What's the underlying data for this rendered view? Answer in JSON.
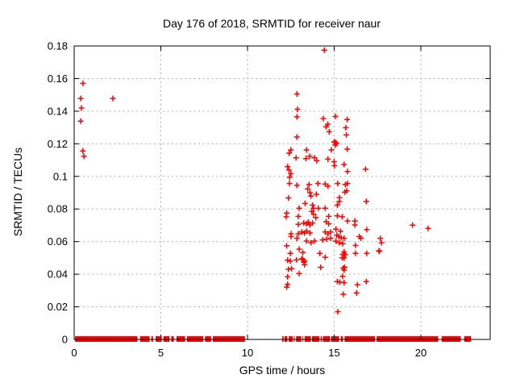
{
  "chart_data": {
    "type": "scatter",
    "title": "Day 176 of 2018, SRMTID for receiver naur",
    "xlabel": "GPS time / hours",
    "ylabel": "SRMTID / TECUs",
    "xlim": [
      0,
      24
    ],
    "ylim": [
      0,
      0.18
    ],
    "xticks": [
      0,
      5,
      10,
      15,
      20
    ],
    "xtick_labels": [
      "0",
      "5",
      "10",
      "15",
      "20"
    ],
    "yticks": [
      0,
      0.02,
      0.04,
      0.06,
      0.08,
      0.1,
      0.12,
      0.14,
      0.16,
      0.18
    ],
    "ytick_labels": [
      "0",
      "0.02",
      "0.04",
      "0.06",
      "0.08",
      "0.1",
      "0.12",
      "0.14",
      "0.16",
      "0.18"
    ],
    "grid": true,
    "legend": "none",
    "marker": "plus",
    "marker_color": "#ff0000",
    "grid_color": "#b0b0b0",
    "border_color": "#000000",
    "baseline_y": 0,
    "baseline_segments": [
      [
        0.05,
        3.65
      ],
      [
        3.8,
        4.35
      ],
      [
        4.45,
        4.55
      ],
      [
        4.7,
        5.05
      ],
      [
        5.15,
        5.5
      ],
      [
        5.6,
        5.75
      ],
      [
        5.9,
        6.4
      ],
      [
        6.5,
        7.45
      ],
      [
        7.55,
        7.9
      ],
      [
        8.0,
        9.85
      ],
      [
        12.0,
        12.08
      ],
      [
        12.13,
        12.3
      ],
      [
        12.38,
        12.6
      ],
      [
        12.67,
        12.72
      ],
      [
        12.8,
        13.1
      ],
      [
        13.17,
        13.22
      ],
      [
        13.3,
        13.65
      ],
      [
        13.72,
        14.15
      ],
      [
        14.22,
        14.28
      ],
      [
        14.35,
        14.75
      ],
      [
        14.82,
        15.28
      ],
      [
        15.38,
        15.5
      ],
      [
        15.6,
        17.35
      ],
      [
        17.45,
        21.0
      ],
      [
        21.2,
        22.3
      ],
      [
        22.5,
        22.9
      ]
    ],
    "points": [
      [
        0.51,
        0.157
      ],
      [
        0.37,
        0.1478
      ],
      [
        0.42,
        0.1419
      ],
      [
        0.37,
        0.1339
      ],
      [
        0.5,
        0.1156
      ],
      [
        0.56,
        0.1123
      ],
      [
        2.23,
        0.1478
      ],
      [
        14.43,
        0.1774
      ],
      [
        12.85,
        0.1505
      ],
      [
        12.88,
        0.1411
      ],
      [
        12.85,
        0.1365
      ],
      [
        14.37,
        0.1355
      ],
      [
        15.07,
        0.1368
      ],
      [
        14.63,
        0.132
      ],
      [
        14.53,
        0.1304
      ],
      [
        15.75,
        0.1349
      ],
      [
        14.71,
        0.1274
      ],
      [
        15.67,
        0.1299
      ],
      [
        15.7,
        0.1254
      ],
      [
        12.85,
        0.1241
      ],
      [
        15.0,
        0.1212
      ],
      [
        15.07,
        0.1208
      ],
      [
        15.13,
        0.1202
      ],
      [
        15.06,
        0.1192
      ],
      [
        12.5,
        0.1162
      ],
      [
        13.4,
        0.1162
      ],
      [
        14.84,
        0.1162
      ],
      [
        15.75,
        0.1167
      ],
      [
        12.4,
        0.1142
      ],
      [
        12.8,
        0.1114
      ],
      [
        13.37,
        0.1109
      ],
      [
        13.58,
        0.1123
      ],
      [
        13.86,
        0.1114
      ],
      [
        14.0,
        0.1096
      ],
      [
        14.64,
        0.1106
      ],
      [
        14.99,
        0.109
      ],
      [
        15.02,
        0.1065
      ],
      [
        15.57,
        0.1073
      ],
      [
        12.31,
        0.106
      ],
      [
        12.39,
        0.1039
      ],
      [
        12.5,
        0.1016
      ],
      [
        12.43,
        0.0994
      ],
      [
        15.77,
        0.103
      ],
      [
        16.81,
        0.1044
      ],
      [
        15.77,
        0.0956
      ],
      [
        15.72,
        0.0912
      ],
      [
        12.42,
        0.0956
      ],
      [
        12.85,
        0.0945
      ],
      [
        13.55,
        0.095
      ],
      [
        14.06,
        0.0956
      ],
      [
        14.48,
        0.0953
      ],
      [
        14.64,
        0.094
      ],
      [
        13.47,
        0.0923
      ],
      [
        13.6,
        0.09
      ],
      [
        13.66,
        0.0879
      ],
      [
        12.36,
        0.0867
      ],
      [
        13.97,
        0.089
      ],
      [
        13.32,
        0.0834
      ],
      [
        12.98,
        0.0805
      ],
      [
        13.75,
        0.0824
      ],
      [
        13.81,
        0.0805
      ],
      [
        13.71,
        0.0785
      ],
      [
        14.09,
        0.0805
      ],
      [
        14.48,
        0.0805
      ],
      [
        12.26,
        0.0775
      ],
      [
        12.23,
        0.0752
      ],
      [
        12.93,
        0.0755
      ],
      [
        13.81,
        0.0768
      ],
      [
        13.94,
        0.0747
      ],
      [
        14.68,
        0.0755
      ],
      [
        12.93,
        0.0706
      ],
      [
        13.24,
        0.0714
      ],
      [
        13.4,
        0.0709
      ],
      [
        13.5,
        0.0719
      ],
      [
        13.6,
        0.0702
      ],
      [
        13.75,
        0.0714
      ],
      [
        14.53,
        0.0722
      ],
      [
        14.68,
        0.0709
      ],
      [
        12.51,
        0.0648
      ],
      [
        12.51,
        0.0631
      ],
      [
        12.93,
        0.0648
      ],
      [
        13.13,
        0.0659
      ],
      [
        13.29,
        0.0653
      ],
      [
        13.4,
        0.0664
      ],
      [
        13.6,
        0.0653
      ],
      [
        14.33,
        0.061
      ],
      [
        14.48,
        0.0659
      ],
      [
        14.64,
        0.0648
      ],
      [
        14.79,
        0.0659
      ],
      [
        12.85,
        0.062
      ],
      [
        13.4,
        0.0603
      ],
      [
        13.66,
        0.0593
      ],
      [
        13.86,
        0.0603
      ],
      [
        14.56,
        0.0615
      ],
      [
        14.79,
        0.062
      ],
      [
        12.26,
        0.0574
      ],
      [
        12.98,
        0.0554
      ],
      [
        13.19,
        0.0533
      ],
      [
        12.47,
        0.0528
      ],
      [
        14.17,
        0.0528
      ],
      [
        14.48,
        0.0504
      ],
      [
        13.13,
        0.0495
      ],
      [
        12.82,
        0.0488
      ],
      [
        15.2,
        0.0956
      ],
      [
        15.64,
        0.095
      ],
      [
        15.61,
        0.0903
      ],
      [
        15.3,
        0.087
      ],
      [
        15.3,
        0.0846
      ],
      [
        15.18,
        0.0824
      ],
      [
        16.85,
        0.0846
      ],
      [
        15.18,
        0.0758
      ],
      [
        15.46,
        0.0752
      ],
      [
        15.77,
        0.0726
      ],
      [
        16.19,
        0.0726
      ],
      [
        16.19,
        0.0702
      ],
      [
        15.1,
        0.0676
      ],
      [
        15.36,
        0.0664
      ],
      [
        16.88,
        0.0673
      ],
      [
        15.15,
        0.064
      ],
      [
        15.26,
        0.0631
      ],
      [
        15.41,
        0.0623
      ],
      [
        15.57,
        0.062
      ],
      [
        16.45,
        0.0631
      ],
      [
        16.54,
        0.062
      ],
      [
        15.1,
        0.0603
      ],
      [
        15.3,
        0.0593
      ],
      [
        15.49,
        0.0587
      ],
      [
        17.66,
        0.062
      ],
      [
        17.73,
        0.0593
      ],
      [
        17.61,
        0.054
      ],
      [
        16.23,
        0.0577
      ],
      [
        15.57,
        0.0537
      ],
      [
        16.23,
        0.0528
      ],
      [
        15.49,
        0.0521
      ],
      [
        15.64,
        0.0521
      ],
      [
        16.88,
        0.0528
      ],
      [
        17.58,
        0.0544
      ],
      [
        15.57,
        0.05
      ],
      [
        15.46,
        0.05
      ],
      [
        12.31,
        0.0486
      ],
      [
        12.47,
        0.048
      ],
      [
        13.19,
        0.0491
      ],
      [
        13.29,
        0.048
      ],
      [
        13.25,
        0.0473
      ],
      [
        12.36,
        0.043
      ],
      [
        12.54,
        0.0434
      ],
      [
        14.22,
        0.0442
      ],
      [
        12.98,
        0.0404
      ],
      [
        12.31,
        0.0384
      ],
      [
        13.29,
        0.0458
      ],
      [
        12.31,
        0.0338
      ],
      [
        12.26,
        0.0321
      ],
      [
        15.52,
        0.0437
      ],
      [
        15.57,
        0.0425
      ],
      [
        15.6,
        0.0443
      ],
      [
        15.49,
        0.0387
      ],
      [
        15.18,
        0.0355
      ],
      [
        15.33,
        0.0351
      ],
      [
        15.57,
        0.0348
      ],
      [
        16.85,
        0.0355
      ],
      [
        16.34,
        0.0335
      ],
      [
        15.52,
        0.0277
      ],
      [
        16.29,
        0.0285
      ],
      [
        15.21,
        0.017
      ],
      [
        19.52,
        0.0701
      ],
      [
        20.42,
        0.0681
      ]
    ]
  }
}
